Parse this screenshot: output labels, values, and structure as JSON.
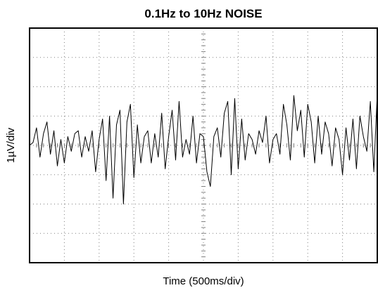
{
  "chart_data": {
    "type": "line",
    "title": "0.1Hz to 10Hz NOISE",
    "xlabel": "Time (500ms/div)",
    "ylabel": "1µV/div",
    "x_unit": "s",
    "y_unit": "µV",
    "xlim": [
      0,
      5
    ],
    "ylim": [
      -4,
      4
    ],
    "x_divisions": 10,
    "y_divisions": 8,
    "grid": true,
    "grid_style": "dotted",
    "colors": {
      "trace": "#000000",
      "frame": "#000000",
      "grid": "#808080"
    },
    "series": [
      {
        "x": [
          0.0,
          0.05,
          0.1,
          0.15,
          0.2,
          0.25,
          0.3,
          0.35,
          0.4,
          0.45,
          0.5,
          0.55,
          0.6,
          0.65,
          0.7,
          0.75,
          0.8,
          0.85,
          0.9,
          0.95,
          1.0,
          1.05,
          1.1,
          1.15,
          1.2,
          1.25,
          1.3,
          1.35,
          1.4,
          1.45,
          1.5,
          1.55,
          1.6,
          1.65,
          1.7,
          1.75,
          1.8,
          1.85,
          1.9,
          1.95,
          2.0,
          2.05,
          2.1,
          2.15,
          2.2,
          2.25,
          2.3,
          2.35,
          2.4,
          2.45,
          2.5,
          2.55,
          2.6,
          2.65,
          2.7,
          2.75,
          2.8,
          2.85,
          2.9,
          2.95,
          3.0,
          3.05,
          3.1,
          3.15,
          3.2,
          3.25,
          3.3,
          3.35,
          3.4,
          3.45,
          3.5,
          3.55,
          3.6,
          3.65,
          3.7,
          3.75,
          3.8,
          3.85,
          3.9,
          3.95,
          4.0,
          4.05,
          4.1,
          4.15,
          4.2,
          4.25,
          4.3,
          4.35,
          4.4,
          4.45,
          4.5,
          4.55,
          4.6,
          4.65,
          4.7,
          4.75,
          4.8,
          4.85,
          4.9,
          4.95,
          5.0
        ],
        "values": [
          0.0,
          0.1,
          0.6,
          -0.4,
          0.4,
          0.8,
          -0.3,
          0.5,
          -0.7,
          0.2,
          -0.6,
          0.3,
          -0.2,
          0.4,
          0.5,
          -0.4,
          0.3,
          -0.2,
          0.5,
          -0.9,
          0.2,
          0.9,
          -1.2,
          1.0,
          -1.8,
          0.7,
          1.2,
          -2.0,
          0.8,
          1.4,
          -1.1,
          0.7,
          -0.6,
          0.3,
          0.5,
          -0.6,
          0.4,
          -0.4,
          1.1,
          -0.8,
          0.3,
          1.2,
          -0.5,
          1.5,
          -0.4,
          0.2,
          -0.3,
          1.0,
          -0.6,
          0.4,
          0.3,
          -0.9,
          -1.4,
          0.3,
          0.6,
          -0.4,
          1.1,
          1.5,
          -1.0,
          1.6,
          -0.8,
          0.9,
          -0.5,
          0.4,
          0.2,
          -0.3,
          0.5,
          0.1,
          1.0,
          -0.6,
          0.2,
          0.4,
          -0.3,
          1.4,
          0.7,
          -0.5,
          1.7,
          0.5,
          1.2,
          -0.4,
          1.4,
          0.8,
          -0.6,
          1.0,
          -0.3,
          0.8,
          0.4,
          -0.7,
          0.6,
          0.2,
          -1.0,
          0.6,
          -0.5,
          0.9,
          -0.8,
          1.0,
          0.3,
          -0.2,
          1.5,
          -0.9,
          1.8
        ]
      }
    ]
  }
}
